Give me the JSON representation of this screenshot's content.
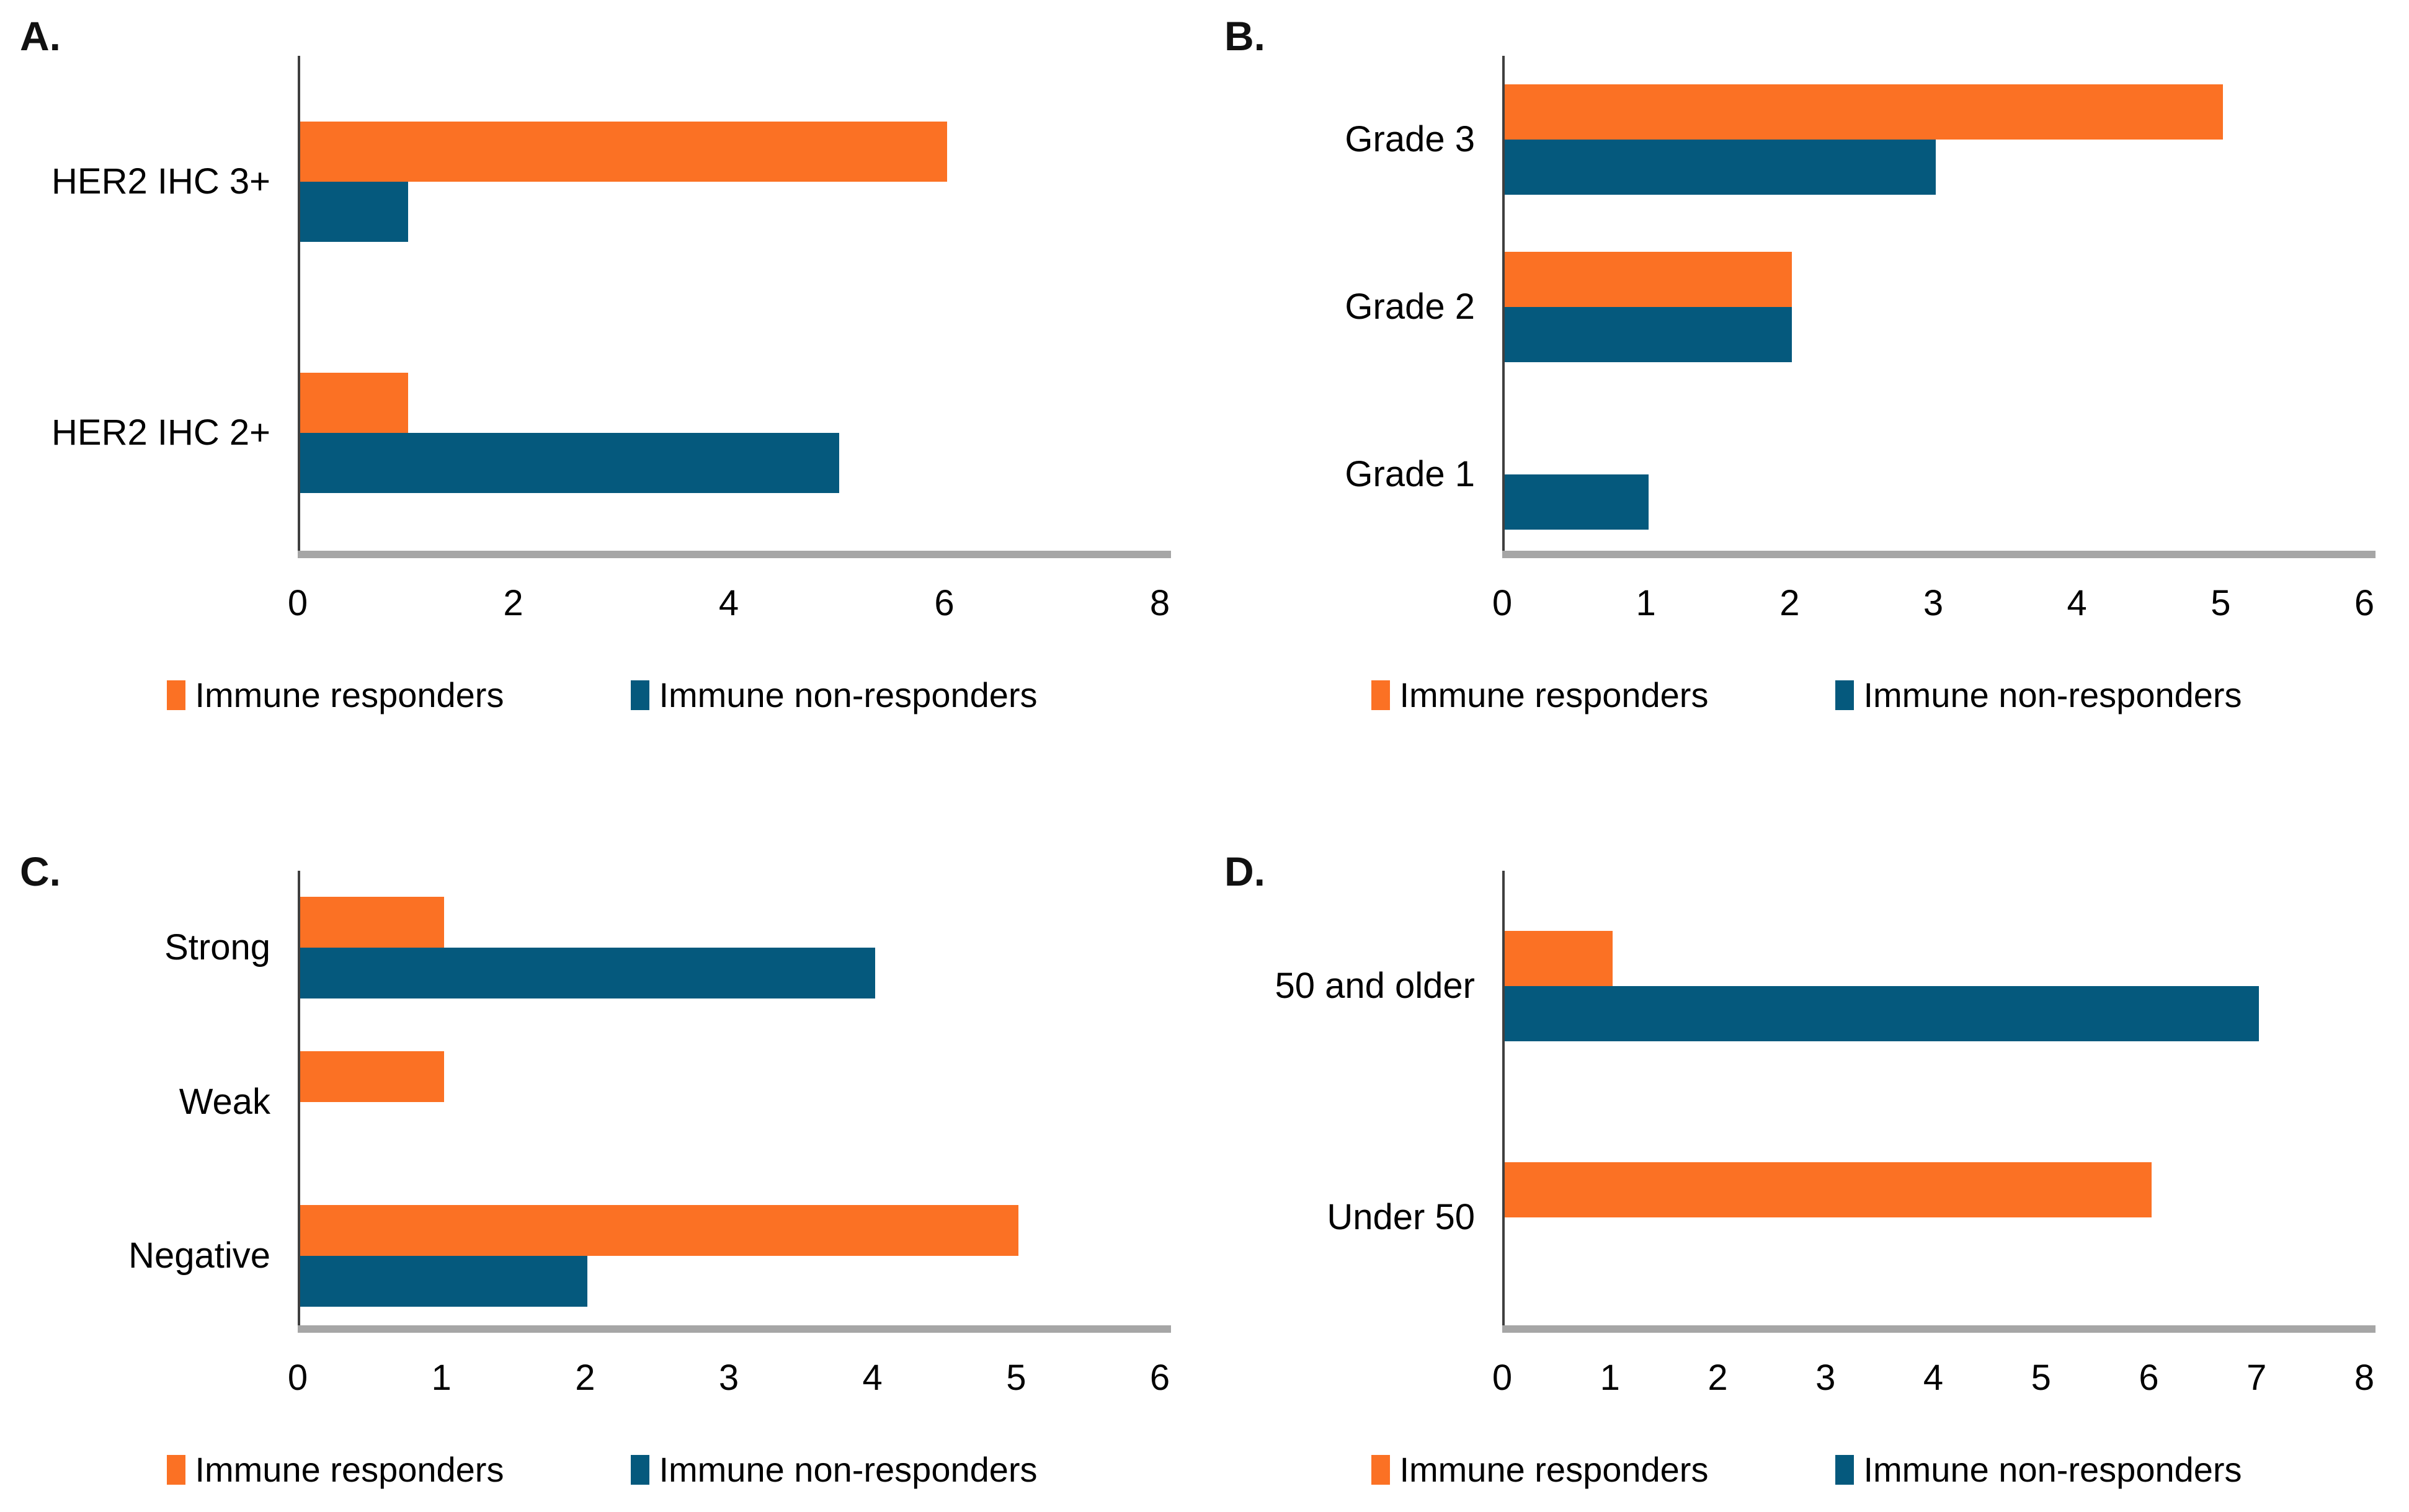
{
  "figure": {
    "background": "#ffffff",
    "description": "Four-panel horizontal grouped bar figure comparing immune responders vs immune non-responders"
  },
  "colors": {
    "responders": "#FB7124",
    "non_responders": "#05597D",
    "axis": "#3F3F3F",
    "baseline": "#A6A6A6",
    "text": "#000000"
  },
  "legend_labels": [
    "Immune responders",
    "Immune non-responders"
  ],
  "chart_data": [
    {
      "type": "bar",
      "orientation": "horizontal",
      "label": "A.",
      "categories": [
        "HER2 IHC 3+",
        "HER2 IHC 2+"
      ],
      "series": [
        {
          "name": "Immune responders",
          "values": [
            6,
            1
          ]
        },
        {
          "name": "Immune non-responders",
          "values": [
            1,
            5
          ]
        }
      ],
      "xlim": [
        0,
        8
      ],
      "xticks": [
        0,
        2,
        4,
        6,
        8
      ],
      "grid": false,
      "legend_position": "bottom"
    },
    {
      "type": "bar",
      "orientation": "horizontal",
      "label": "B.",
      "categories": [
        "Grade 3",
        "Grade 2",
        "Grade 1"
      ],
      "series": [
        {
          "name": "Immune responders",
          "values": [
            5,
            2,
            0
          ]
        },
        {
          "name": "Immune non-responders",
          "values": [
            3,
            2,
            1
          ]
        }
      ],
      "xlim": [
        0,
        6
      ],
      "xticks": [
        0,
        1,
        2,
        3,
        4,
        5,
        6
      ],
      "grid": false,
      "legend_position": "bottom"
    },
    {
      "type": "bar",
      "orientation": "horizontal",
      "label": "C.",
      "categories": [
        "Strong",
        "Weak",
        "Negative"
      ],
      "series": [
        {
          "name": "Immune responders",
          "values": [
            1,
            1,
            5
          ]
        },
        {
          "name": "Immune non-responders",
          "values": [
            4,
            0,
            2
          ]
        }
      ],
      "xlim": [
        0,
        6
      ],
      "xticks": [
        0,
        1,
        2,
        3,
        4,
        5,
        6
      ],
      "grid": false,
      "legend_position": "bottom"
    },
    {
      "type": "bar",
      "orientation": "horizontal",
      "label": "D.",
      "categories": [
        "50 and older",
        "Under 50"
      ],
      "series": [
        {
          "name": "Immune responders",
          "values": [
            1,
            6
          ]
        },
        {
          "name": "Immune non-responders",
          "values": [
            7,
            0
          ]
        }
      ],
      "xlim": [
        0,
        8
      ],
      "xticks": [
        0,
        1,
        2,
        3,
        4,
        5,
        6,
        7,
        8
      ],
      "grid": false,
      "legend_position": "bottom"
    }
  ]
}
